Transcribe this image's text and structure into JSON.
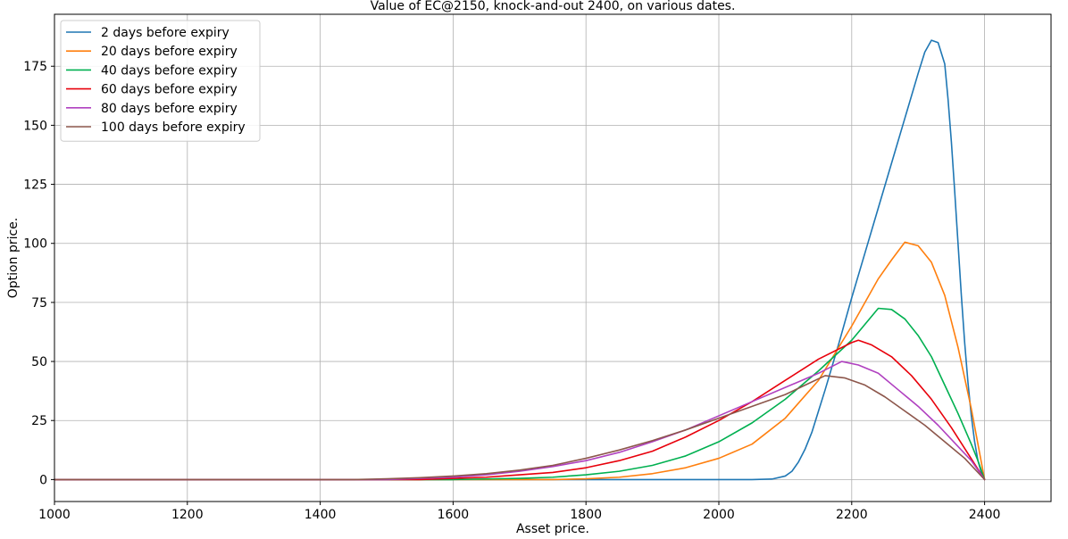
{
  "chart_data": {
    "type": "line",
    "title": "Value of EC@2150, knock-and-out 2400, on various dates.",
    "xlabel": "Asset price.",
    "ylabel": "Option price.",
    "xlim": [
      1000,
      2500
    ],
    "ylim": [
      -9.3,
      197
    ],
    "x_ticks": [
      1000,
      1200,
      1400,
      1600,
      1800,
      2000,
      2200,
      2400
    ],
    "y_ticks": [
      0,
      25,
      50,
      75,
      100,
      125,
      150,
      175
    ],
    "grid": true,
    "legend_position": "top-left",
    "series": [
      {
        "name": "2 days before expiry",
        "color": "#1f77b4",
        "points": [
          [
            1000,
            0
          ],
          [
            1800,
            0
          ],
          [
            2050,
            0
          ],
          [
            2080,
            0.2
          ],
          [
            2100,
            1.5
          ],
          [
            2110,
            3.5
          ],
          [
            2120,
            7.5
          ],
          [
            2130,
            13
          ],
          [
            2140,
            20
          ],
          [
            2150,
            29
          ],
          [
            2160,
            38
          ],
          [
            2170,
            47.5
          ],
          [
            2180,
            57
          ],
          [
            2190,
            67
          ],
          [
            2200,
            77
          ],
          [
            2220,
            96
          ],
          [
            2240,
            115
          ],
          [
            2260,
            134
          ],
          [
            2280,
            153
          ],
          [
            2300,
            172
          ],
          [
            2310,
            181
          ],
          [
            2320,
            186
          ],
          [
            2330,
            185
          ],
          [
            2340,
            176
          ],
          [
            2345,
            161
          ],
          [
            2350,
            143
          ],
          [
            2355,
            122
          ],
          [
            2360,
            100
          ],
          [
            2365,
            78
          ],
          [
            2370,
            58
          ],
          [
            2375,
            41
          ],
          [
            2380,
            27
          ],
          [
            2385,
            16
          ],
          [
            2390,
            8
          ],
          [
            2395,
            3
          ],
          [
            2400,
            0
          ]
        ]
      },
      {
        "name": "20 days before expiry",
        "color": "#ff7f0e",
        "points": [
          [
            1000,
            0
          ],
          [
            1750,
            0
          ],
          [
            1800,
            0.3
          ],
          [
            1850,
            1
          ],
          [
            1900,
            2.5
          ],
          [
            1950,
            5
          ],
          [
            2000,
            9
          ],
          [
            2050,
            15
          ],
          [
            2100,
            26
          ],
          [
            2150,
            42
          ],
          [
            2200,
            65
          ],
          [
            2240,
            85
          ],
          [
            2260,
            93
          ],
          [
            2280,
            100.5
          ],
          [
            2300,
            99
          ],
          [
            2320,
            92
          ],
          [
            2340,
            78
          ],
          [
            2360,
            56
          ],
          [
            2380,
            30
          ],
          [
            2390,
            15
          ],
          [
            2400,
            0
          ]
        ]
      },
      {
        "name": "40 days before expiry",
        "color": "#00b050",
        "points": [
          [
            1000,
            0
          ],
          [
            1600,
            0
          ],
          [
            1700,
            0.5
          ],
          [
            1750,
            1
          ],
          [
            1800,
            2
          ],
          [
            1850,
            3.5
          ],
          [
            1900,
            6
          ],
          [
            1950,
            10
          ],
          [
            2000,
            16
          ],
          [
            2050,
            24
          ],
          [
            2100,
            34
          ],
          [
            2150,
            46
          ],
          [
            2200,
            59
          ],
          [
            2240,
            72.5
          ],
          [
            2260,
            72
          ],
          [
            2280,
            68
          ],
          [
            2300,
            61
          ],
          [
            2320,
            52
          ],
          [
            2340,
            40
          ],
          [
            2360,
            28
          ],
          [
            2380,
            15
          ],
          [
            2390,
            8
          ],
          [
            2400,
            0
          ]
        ]
      },
      {
        "name": "60 days before expiry",
        "color": "#e8000b",
        "points": [
          [
            1000,
            0
          ],
          [
            1550,
            0
          ],
          [
            1600,
            0.5
          ],
          [
            1650,
            1
          ],
          [
            1700,
            2
          ],
          [
            1750,
            3
          ],
          [
            1800,
            5
          ],
          [
            1850,
            8
          ],
          [
            1900,
            12
          ],
          [
            1950,
            18
          ],
          [
            2000,
            25
          ],
          [
            2050,
            33
          ],
          [
            2100,
            42
          ],
          [
            2150,
            51
          ],
          [
            2200,
            58
          ],
          [
            2210,
            59
          ],
          [
            2230,
            57
          ],
          [
            2260,
            52
          ],
          [
            2290,
            44
          ],
          [
            2320,
            34
          ],
          [
            2350,
            22
          ],
          [
            2375,
            11
          ],
          [
            2400,
            0
          ]
        ]
      },
      {
        "name": "80 days before expiry",
        "color": "#b040c0",
        "points": [
          [
            1000,
            0
          ],
          [
            1500,
            0
          ],
          [
            1550,
            0.5
          ],
          [
            1600,
            1
          ],
          [
            1650,
            2
          ],
          [
            1700,
            3.5
          ],
          [
            1750,
            5.5
          ],
          [
            1800,
            8
          ],
          [
            1850,
            11.5
          ],
          [
            1900,
            16
          ],
          [
            1950,
            21
          ],
          [
            2000,
            27
          ],
          [
            2050,
            33
          ],
          [
            2100,
            39
          ],
          [
            2150,
            45
          ],
          [
            2185,
            50
          ],
          [
            2210,
            48.5
          ],
          [
            2240,
            45
          ],
          [
            2270,
            38
          ],
          [
            2300,
            31
          ],
          [
            2330,
            23
          ],
          [
            2360,
            14
          ],
          [
            2380,
            8
          ],
          [
            2400,
            0
          ]
        ]
      },
      {
        "name": "100 days before expiry",
        "color": "#8c564b",
        "points": [
          [
            1000,
            0
          ],
          [
            1450,
            0
          ],
          [
            1500,
            0.3
          ],
          [
            1550,
            0.8
          ],
          [
            1600,
            1.5
          ],
          [
            1650,
            2.5
          ],
          [
            1700,
            4
          ],
          [
            1750,
            6
          ],
          [
            1800,
            9
          ],
          [
            1850,
            12.5
          ],
          [
            1900,
            16.5
          ],
          [
            1950,
            21
          ],
          [
            2000,
            26
          ],
          [
            2050,
            31
          ],
          [
            2100,
            36
          ],
          [
            2130,
            40
          ],
          [
            2160,
            44
          ],
          [
            2190,
            43
          ],
          [
            2220,
            40
          ],
          [
            2250,
            35
          ],
          [
            2280,
            29
          ],
          [
            2310,
            23
          ],
          [
            2340,
            16
          ],
          [
            2370,
            9
          ],
          [
            2400,
            0
          ]
        ]
      }
    ]
  }
}
